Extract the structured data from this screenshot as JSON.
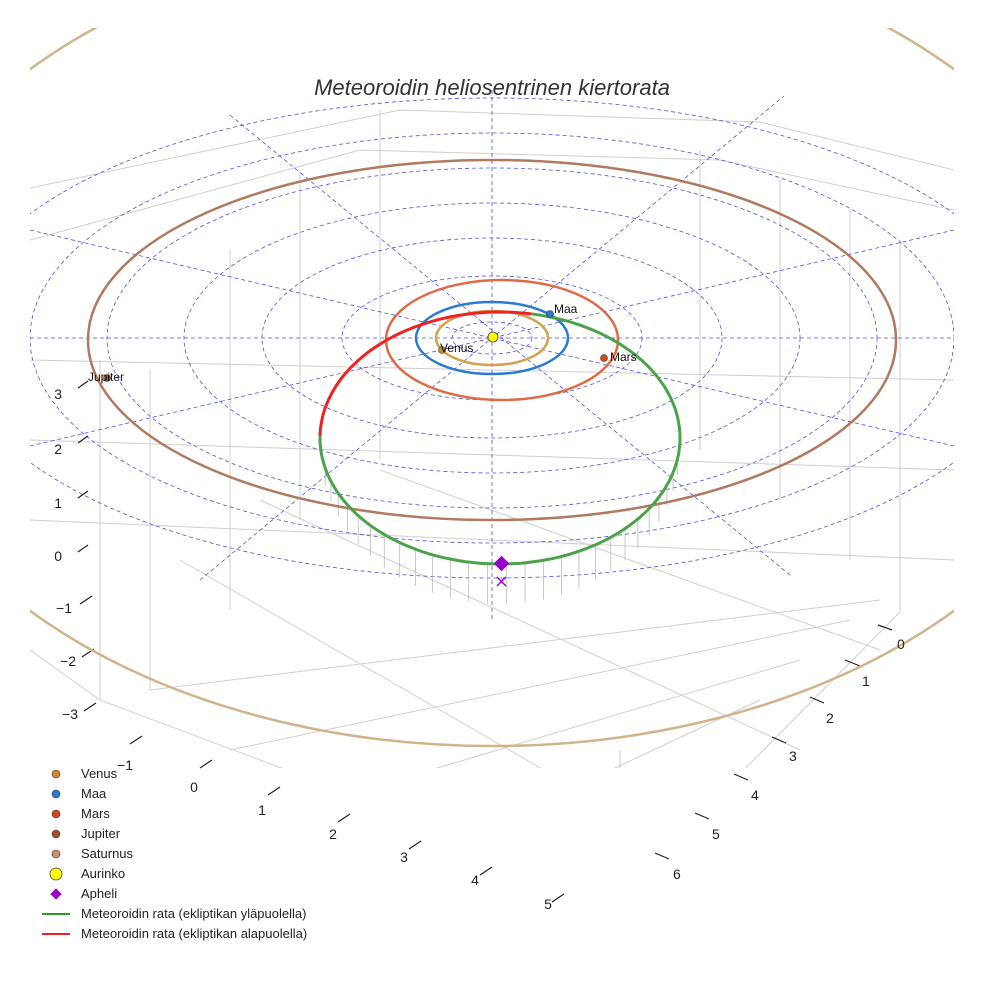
{
  "chart_data": {
    "type": "line",
    "title": "Meteoroidin heliosentrinen kiertorata",
    "axes": {
      "left_ticks": [
        "3",
        "2",
        "1",
        "0",
        "−1",
        "−2",
        "−3"
      ],
      "bottom_ticks": [
        "−1",
        "0",
        "1",
        "2",
        "3",
        "4",
        "5"
      ],
      "right_ticks": [
        "0",
        "1",
        "2",
        "3",
        "4",
        "5",
        "6"
      ]
    },
    "planet_labels": [
      "Venus",
      "Maa",
      "Mars",
      "Jupiter"
    ],
    "legend": {
      "placement": "bottom-left",
      "items": [
        {
          "label": "Venus",
          "marker": "circle",
          "color": "#d08a2a"
        },
        {
          "label": "Maa",
          "marker": "circle",
          "color": "#2a7bd0"
        },
        {
          "label": "Mars",
          "marker": "circle",
          "color": "#d04a1e"
        },
        {
          "label": "Jupiter",
          "marker": "circle",
          "color": "#a0522d"
        },
        {
          "label": "Saturnus",
          "marker": "circle",
          "color": "#c8916a"
        },
        {
          "label": "Aurinko",
          "marker": "circle",
          "color": "#ffff00"
        },
        {
          "label": "Apheli",
          "marker": "diamond",
          "color": "#9a00cc"
        },
        {
          "label": "Meteoroidin rata (ekliptikan yläpuolella)",
          "marker": "line",
          "color": "#2a9a2a"
        },
        {
          "label": "Meteoroidin rata (ekliptikan alapuolella)",
          "marker": "line",
          "color": "#ee2222"
        }
      ]
    },
    "colors": {
      "venus_orbit": "#d4a24a",
      "earth_orbit": "#2a7bd0",
      "mars_orbit": "#e06a46",
      "jupiter_orbit": "#b07a60",
      "saturn_orbit": "#d2b48c",
      "above_ecliptic": "#4aa34a",
      "below_ecliptic": "#ee2222",
      "ecliptic_grid": "#3333dd",
      "sun": "#ffff00",
      "aphelion": "#9a00cc"
    },
    "grid": true
  }
}
